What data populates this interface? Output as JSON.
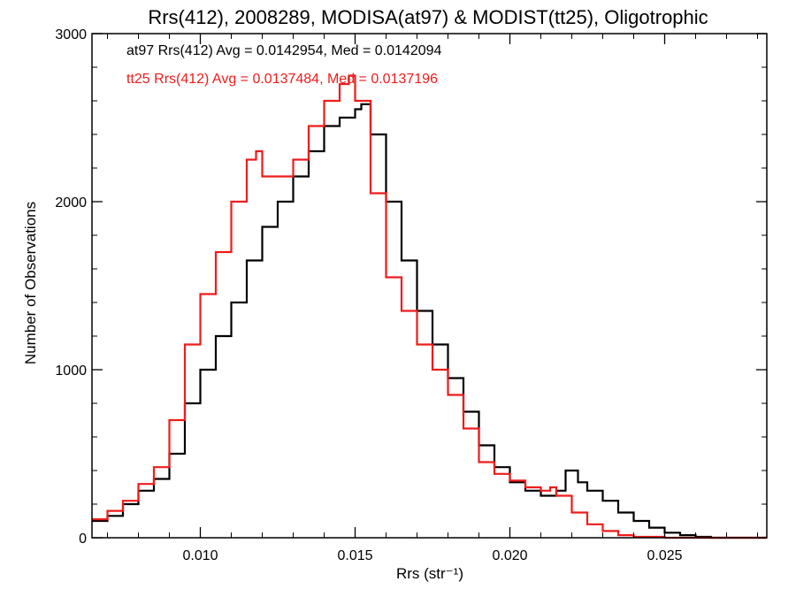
{
  "chart_data": {
    "type": "line",
    "title": "Rrs(412), 2008289, MODISA(at97) & MODIST(tt25), Oligotrophic",
    "xlabel": "Rrs (str⁻¹)",
    "ylabel": "Number of Observations",
    "xlim": [
      0.0065,
      0.0283
    ],
    "ylim": [
      0,
      3000
    ],
    "x_ticks": [
      0.01,
      0.015,
      0.02,
      0.025
    ],
    "x_tick_labels": [
      "0.010",
      "0.015",
      "0.020",
      "0.025"
    ],
    "y_ticks": [
      0,
      1000,
      2000,
      3000
    ],
    "y_tick_labels": [
      "0",
      "1000",
      "2000",
      "3000"
    ],
    "grid": false,
    "legend_position": "top-left",
    "series": [
      {
        "name": "at97",
        "color": "#000000",
        "stats_label": "at97 Rrs(412) Avg = 0.0142954, Med = 0.0142094",
        "x": [
          0.0065,
          0.007,
          0.0075,
          0.008,
          0.0085,
          0.009,
          0.0095,
          0.01,
          0.0105,
          0.011,
          0.0115,
          0.012,
          0.0125,
          0.013,
          0.0135,
          0.014,
          0.0145,
          0.015,
          0.0152,
          0.0155,
          0.016,
          0.0165,
          0.017,
          0.0175,
          0.018,
          0.0185,
          0.019,
          0.0195,
          0.02,
          0.0205,
          0.021,
          0.0215,
          0.0218,
          0.0222,
          0.0225,
          0.023,
          0.0235,
          0.024,
          0.0245,
          0.025,
          0.0255,
          0.026,
          0.0265,
          0.027,
          0.0275,
          0.0283
        ],
        "values": [
          100,
          130,
          200,
          280,
          350,
          500,
          800,
          1000,
          1200,
          1400,
          1650,
          1850,
          2000,
          2150,
          2300,
          2450,
          2500,
          2550,
          2580,
          2400,
          2000,
          1650,
          1350,
          1150,
          950,
          750,
          550,
          420,
          330,
          280,
          250,
          280,
          400,
          330,
          280,
          220,
          150,
          100,
          60,
          30,
          15,
          5,
          0,
          0,
          0,
          0
        ]
      },
      {
        "name": "tt25",
        "color": "#ee1c1c",
        "stats_label": "tt25 Rrs(412) Avg = 0.0137484, Med = 0.0137196",
        "x": [
          0.0065,
          0.007,
          0.0075,
          0.008,
          0.0085,
          0.009,
          0.0095,
          0.01,
          0.0105,
          0.011,
          0.0115,
          0.0118,
          0.012,
          0.0125,
          0.013,
          0.0135,
          0.014,
          0.0145,
          0.0148,
          0.015,
          0.0155,
          0.016,
          0.0165,
          0.017,
          0.0175,
          0.018,
          0.0185,
          0.019,
          0.0195,
          0.02,
          0.0205,
          0.021,
          0.0213,
          0.0215,
          0.022,
          0.0225,
          0.023,
          0.0235,
          0.024,
          0.025,
          0.026,
          0.027,
          0.0283
        ],
        "values": [
          110,
          160,
          220,
          320,
          420,
          700,
          1150,
          1450,
          1700,
          2000,
          2250,
          2300,
          2150,
          2150,
          2250,
          2450,
          2600,
          2700,
          2750,
          2600,
          2050,
          1550,
          1350,
          1150,
          1000,
          850,
          650,
          450,
          380,
          340,
          300,
          280,
          300,
          250,
          150,
          80,
          40,
          15,
          5,
          0,
          0,
          0,
          0
        ]
      }
    ]
  }
}
